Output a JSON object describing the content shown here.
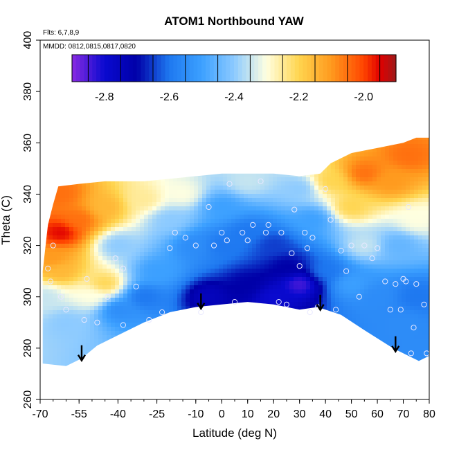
{
  "chart_data": {
    "type": "heatmap",
    "title": "ATOM1 Northbound YAW",
    "notes": [
      "Flts: 6,7,8,9",
      "MMDD: 0812,0815,0817,0820"
    ],
    "xlabel": "Latitude (deg N)",
    "ylabel": "Theta (C)",
    "xlim": [
      -70,
      80
    ],
    "ylim": [
      260,
      400
    ],
    "x_ticks": [
      -70,
      -55,
      -40,
      -25,
      -10,
      0,
      10,
      20,
      30,
      40,
      50,
      60,
      70,
      80
    ],
    "x_tick_labels": [
      "-70",
      "-55",
      "-40",
      "-25",
      "-10",
      "0",
      "10",
      "20",
      "30",
      "40",
      "50",
      "60",
      "70",
      "80"
    ],
    "y_ticks": [
      260,
      280,
      300,
      320,
      340,
      360,
      380,
      400
    ],
    "y_tick_labels": [
      "260",
      "280",
      "300",
      "320",
      "340",
      "360",
      "380",
      "400"
    ],
    "colorbar": {
      "range": [
        -2.9,
        -1.9
      ],
      "ticks": [
        -2.8,
        -2.6,
        -2.4,
        -2.2,
        -2.0
      ],
      "tick_labels": [
        "-2.8",
        "-2.6",
        "-2.4",
        "-2.2",
        "-2.0"
      ],
      "stops": [
        [
          -2.9,
          "#8a2be2"
        ],
        [
          -2.8,
          "#0a0ad0"
        ],
        [
          -2.7,
          "#0000a8"
        ],
        [
          -2.6,
          "#1e78f0"
        ],
        [
          -2.5,
          "#3ca0ff"
        ],
        [
          -2.4,
          "#8ccaff"
        ],
        [
          -2.3,
          "#ffffe0"
        ],
        [
          -2.2,
          "#ffd54f"
        ],
        [
          -2.1,
          "#ff9a1e"
        ],
        [
          -2.0,
          "#ff4500"
        ],
        [
          -1.95,
          "#e00000"
        ],
        [
          -1.9,
          "#9e1a1a"
        ]
      ]
    },
    "upper_boundary": [
      [
        -69,
        310
      ],
      [
        -67,
        328
      ],
      [
        -65,
        336
      ],
      [
        -63,
        343
      ],
      [
        -55,
        344
      ],
      [
        -45,
        345
      ],
      [
        -30,
        345
      ],
      [
        -20,
        346
      ],
      [
        -10,
        347
      ],
      [
        0,
        348
      ],
      [
        10,
        348
      ],
      [
        20,
        348
      ],
      [
        30,
        347
      ],
      [
        38,
        348
      ],
      [
        42,
        352
      ],
      [
        50,
        356
      ],
      [
        60,
        358
      ],
      [
        70,
        360
      ],
      [
        75,
        362
      ]
    ],
    "lower_boundary": [
      [
        -69,
        274
      ],
      [
        -60,
        273
      ],
      [
        -54,
        276
      ],
      [
        -48,
        281
      ],
      [
        -40,
        285
      ],
      [
        -30,
        290
      ],
      [
        -20,
        294
      ],
      [
        -10,
        296
      ],
      [
        0,
        297
      ],
      [
        10,
        298
      ],
      [
        20,
        297
      ],
      [
        30,
        295
      ],
      [
        37,
        296
      ],
      [
        46,
        293
      ],
      [
        55,
        287
      ],
      [
        66,
        280
      ],
      [
        72,
        277
      ],
      [
        76,
        275
      ],
      [
        80,
        277
      ]
    ],
    "field_anchors": [
      [
        -62,
        325,
        -1.95
      ],
      [
        -62,
        340,
        -2.05
      ],
      [
        -55,
        330,
        -2.05
      ],
      [
        -45,
        335,
        -2.15
      ],
      [
        -30,
        338,
        -2.25
      ],
      [
        -15,
        340,
        -2.3
      ],
      [
        10,
        345,
        -2.35
      ],
      [
        30,
        342,
        -2.4
      ],
      [
        42,
        345,
        -2.2
      ],
      [
        55,
        348,
        -2.05
      ],
      [
        65,
        345,
        -2.1
      ],
      [
        72,
        355,
        -2.05
      ],
      [
        75,
        330,
        -2.3
      ],
      [
        68,
        320,
        -2.45
      ],
      [
        55,
        320,
        -2.35
      ],
      [
        50,
        335,
        -2.2
      ],
      [
        -68,
        300,
        -2.35
      ],
      [
        -60,
        290,
        -2.4
      ],
      [
        -50,
        300,
        -2.3
      ],
      [
        -40,
        320,
        -2.4
      ],
      [
        -25,
        310,
        -2.5
      ],
      [
        -10,
        320,
        -2.55
      ],
      [
        0,
        320,
        -2.6
      ],
      [
        10,
        325,
        -2.6
      ],
      [
        20,
        320,
        -2.65
      ],
      [
        25,
        312,
        -2.7
      ],
      [
        30,
        305,
        -2.85
      ],
      [
        20,
        300,
        -2.8
      ],
      [
        -5,
        300,
        -2.75
      ],
      [
        10,
        305,
        -2.7
      ],
      [
        40,
        310,
        -2.6
      ],
      [
        50,
        305,
        -2.5
      ],
      [
        60,
        300,
        -2.55
      ],
      [
        70,
        290,
        -2.55
      ],
      [
        -40,
        295,
        -2.55
      ],
      [
        -30,
        300,
        -2.6
      ],
      [
        -65,
        315,
        -2.1
      ],
      [
        -62,
        310,
        -2.15
      ],
      [
        -45,
        305,
        -2.2
      ],
      [
        35,
        330,
        -2.5
      ],
      [
        0,
        335,
        -2.5
      ],
      [
        -20,
        330,
        -2.4
      ],
      [
        75,
        300,
        -2.6
      ]
    ],
    "observation_points": [
      [
        -65,
        320
      ],
      [
        -67,
        311
      ],
      [
        -66,
        306
      ],
      [
        -62,
        300
      ],
      [
        -60,
        295
      ],
      [
        -52,
        307
      ],
      [
        -53,
        291
      ],
      [
        -48,
        290
      ],
      [
        -44,
        300
      ],
      [
        -41,
        315
      ],
      [
        -38,
        311
      ],
      [
        -38,
        289
      ],
      [
        -33,
        304
      ],
      [
        -28,
        291
      ],
      [
        -23,
        294
      ],
      [
        -20,
        319
      ],
      [
        -18,
        325
      ],
      [
        -14,
        323
      ],
      [
        -10,
        320
      ],
      [
        -8,
        294
      ],
      [
        -5,
        335
      ],
      [
        -3,
        320
      ],
      [
        0,
        325
      ],
      [
        2,
        322
      ],
      [
        3,
        344
      ],
      [
        5,
        298
      ],
      [
        8,
        325
      ],
      [
        10,
        322
      ],
      [
        12,
        328
      ],
      [
        15,
        345
      ],
      [
        17,
        325
      ],
      [
        18,
        328
      ],
      [
        22,
        298
      ],
      [
        23,
        325
      ],
      [
        25,
        297
      ],
      [
        27,
        317
      ],
      [
        28,
        334
      ],
      [
        30,
        312
      ],
      [
        32,
        325
      ],
      [
        33,
        319
      ],
      [
        34,
        294
      ],
      [
        35,
        323
      ],
      [
        37,
        296
      ],
      [
        40,
        342
      ],
      [
        42,
        330
      ],
      [
        44,
        295
      ],
      [
        46,
        318
      ],
      [
        48,
        310
      ],
      [
        50,
        320
      ],
      [
        53,
        300
      ],
      [
        55,
        320
      ],
      [
        58,
        315
      ],
      [
        60,
        319
      ],
      [
        63,
        306
      ],
      [
        65,
        295
      ],
      [
        67,
        305
      ],
      [
        69,
        295
      ],
      [
        70,
        307
      ],
      [
        71,
        306
      ],
      [
        72,
        335
      ],
      [
        73,
        278
      ],
      [
        74,
        288
      ],
      [
        75,
        305
      ],
      [
        78,
        297
      ],
      [
        79,
        278
      ]
    ],
    "arrows": [
      -54,
      -8,
      38,
      67
    ]
  }
}
